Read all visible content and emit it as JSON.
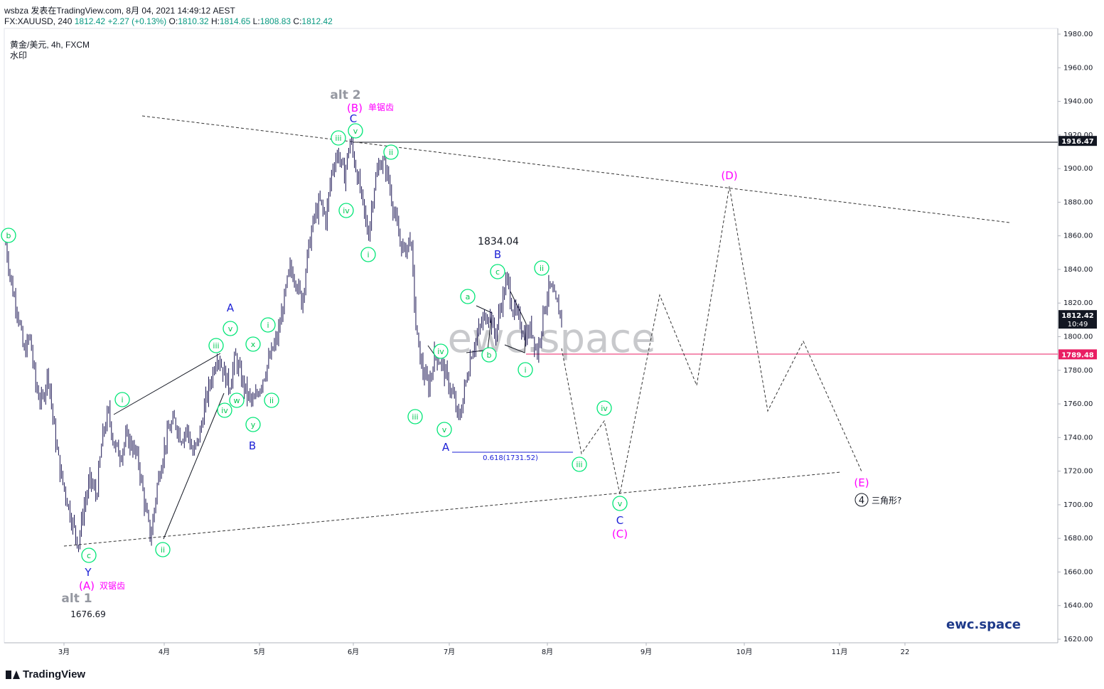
{
  "header": {
    "line1": "wsbza 发表在TradingView.com, 8月 04, 2021 14:49:12 AEST",
    "symbol": "FX:XAUUSD, 240",
    "last": "1812.42",
    "change": "+2.27 (+0.13%)",
    "ohlc": {
      "o_label": "O:",
      "o": "1810.32",
      "h_label": "H:",
      "h": "1814.65",
      "l_label": "L:",
      "l": "1808.83",
      "c_label": "C:",
      "c": "1812.42"
    }
  },
  "symbol_info": {
    "line1": "黄金/美元, 4h, FXCM",
    "line2": "水印"
  },
  "watermark": "ewc.space",
  "brand": "ewc.space",
  "footer": {
    "logo": "TradingView",
    "logo_icon": "tradingview-logo-icon"
  },
  "colors": {
    "candle": "#1b1553",
    "green": "#00e676",
    "magenta": "#ff00ff",
    "blue": "#1e22d6",
    "gray": "#9598a1",
    "red_line": "#e91e63",
    "brand": "#1e3a8a"
  },
  "chart_data": {
    "type": "candlestick",
    "ylim": [
      1615,
      1985
    ],
    "y_ticks": [
      "1980.00",
      "1960.00",
      "1940.00",
      "1920.00",
      "1900.00",
      "1880.00",
      "1860.00",
      "1840.00",
      "1820.00",
      "1800.00",
      "1780.00",
      "1760.00",
      "1740.00",
      "1720.00",
      "1700.00",
      "1680.00",
      "1660.00",
      "1640.00",
      "1620.00"
    ],
    "y_tick_values": [
      1980,
      1960,
      1940,
      1920,
      1900,
      1880,
      1860,
      1840,
      1820,
      1800,
      1780,
      1760,
      1740,
      1720,
      1700,
      1680,
      1660,
      1640,
      1620
    ],
    "x_ticks": [
      "3月",
      "4月",
      "5月",
      "6月",
      "7月",
      "8月",
      "9月",
      "10月",
      "11月",
      "22"
    ],
    "price_labels": [
      {
        "text": "1916.47",
        "value": 1916.47,
        "style": "dark"
      },
      {
        "text": "1812.42",
        "sub": "10:49",
        "value": 1812.42,
        "style": "dark"
      },
      {
        "text": "1789.48",
        "value": 1789.48,
        "style": "red"
      }
    ],
    "price_path": [
      1855,
      1830,
      1815,
      1790,
      1800,
      1770,
      1760,
      1780,
      1745,
      1720,
      1705,
      1690,
      1676.69,
      1700,
      1715,
      1705,
      1740,
      1755,
      1735,
      1730,
      1740,
      1735,
      1725,
      1700,
      1680,
      1710,
      1730,
      1745,
      1750,
      1740,
      1745,
      1730,
      1740,
      1760,
      1775,
      1790,
      1780,
      1770,
      1788,
      1775,
      1765,
      1760,
      1770,
      1780,
      1790,
      1800,
      1820,
      1840,
      1835,
      1820,
      1850,
      1870,
      1880,
      1870,
      1900,
      1910,
      1895,
      1916.47,
      1900,
      1880,
      1860,
      1890,
      1905,
      1900,
      1880,
      1860,
      1850,
      1860,
      1800,
      1780,
      1770,
      1790,
      1785,
      1775,
      1765,
      1750,
      1770,
      1790,
      1800,
      1810,
      1815,
      1800,
      1820,
      1834.04,
      1815,
      1810,
      1800,
      1805,
      1790,
      1815,
      1830,
      1820,
      1812.42
    ],
    "annotations": {
      "top": "1834.04",
      "low": "1676.69",
      "fib": "0.618(1731.52)",
      "alt1": "alt 1",
      "alt2": "alt 2",
      "A_paren": "(A)",
      "A_note": "双锯齿",
      "B_paren": "(B)",
      "B_note": "单锯齿",
      "C_paren": "(C)",
      "D_paren": "(D)",
      "E_paren": "(E)",
      "wave4": "4",
      "triangle": "三角形?"
    }
  }
}
